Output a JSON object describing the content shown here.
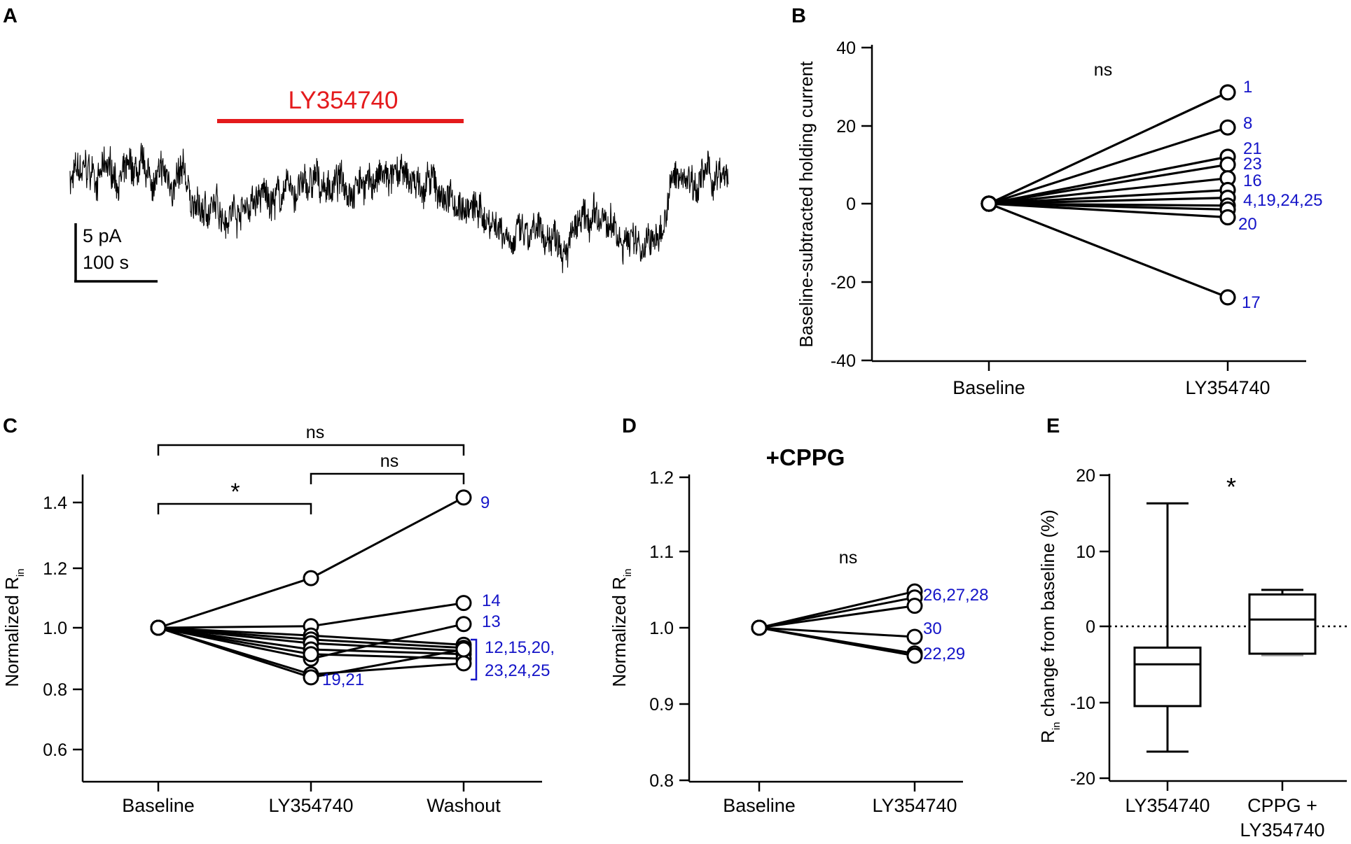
{
  "colors": {
    "axis": "#000000",
    "annotation": "#1414c8",
    "drug_bar": "#e41a1c",
    "box_whisker_grey": "#999999"
  },
  "chart_data": [
    {
      "panel": "A",
      "type": "line",
      "drug_label": "LY354740",
      "scalebar_y": "5 pA",
      "scalebar_x": "100 s",
      "trace_levels_pA": [
        {
          "t_s": 0,
          "pA": 0
        },
        {
          "t_s": 40,
          "pA": 0.4
        },
        {
          "t_s": 90,
          "pA": -0.2
        },
        {
          "t_s": 130,
          "pA": -0.5
        },
        {
          "t_s": 145,
          "pA": -3.0
        },
        {
          "t_s": 200,
          "pA": -2.2
        },
        {
          "t_s": 260,
          "pA": -1.0
        },
        {
          "t_s": 330,
          "pA": 0.0
        },
        {
          "t_s": 400,
          "pA": -0.5
        },
        {
          "t_s": 440,
          "pA": -2.2
        },
        {
          "t_s": 480,
          "pA": -3.6
        },
        {
          "t_s": 520,
          "pA": -5.6
        },
        {
          "t_s": 560,
          "pA": -4.6
        },
        {
          "t_s": 600,
          "pA": -4.2
        },
        {
          "t_s": 640,
          "pA": -5.2
        },
        {
          "t_s": 665,
          "pA": -5.8
        },
        {
          "t_s": 680,
          "pA": -0.6
        },
        {
          "t_s": 700,
          "pA": 0.5
        },
        {
          "t_s": 745,
          "pA": -0.4
        }
      ],
      "drug_window_s": [
        167,
        450
      ]
    },
    {
      "panel": "B",
      "type": "line",
      "ylabel": "Baseline-subtracted holding current",
      "ylim": [
        -40,
        40
      ],
      "yticks": [
        "40",
        "20",
        "0",
        "-20",
        "-40"
      ],
      "categories": [
        "Baseline",
        "LY354740"
      ],
      "significance": "ns",
      "series": [
        {
          "label": "1",
          "values": [
            0,
            28.5
          ]
        },
        {
          "label": "8",
          "values": [
            0,
            19.5
          ]
        },
        {
          "label": "21",
          "values": [
            0,
            12
          ]
        },
        {
          "label": "23",
          "values": [
            0,
            10
          ]
        },
        {
          "label": "16",
          "values": [
            0,
            6.5
          ]
        },
        {
          "label": "",
          "values": [
            0,
            3.5
          ]
        },
        {
          "label": "4,19,24,25",
          "values": [
            0,
            1.5
          ]
        },
        {
          "label": "",
          "values": [
            0,
            -0.5
          ]
        },
        {
          "label": "",
          "values": [
            0,
            -1.5
          ]
        },
        {
          "label": "20",
          "values": [
            0,
            -3.5
          ]
        },
        {
          "label": "17",
          "values": [
            0,
            -24
          ]
        }
      ]
    },
    {
      "panel": "C",
      "type": "line",
      "ylabel_main": "Normalized R",
      "ylabel_sub": "in",
      "ylim": [
        0.5,
        1.5
      ],
      "yticks": [
        "1.4",
        "1.2",
        "1.0",
        "0.8",
        "0.6"
      ],
      "categories": [
        "Baseline",
        "LY354740",
        "Washout"
      ],
      "comparisons": [
        {
          "from": "Baseline",
          "to": "Washout",
          "label": "ns"
        },
        {
          "from": "LY354740",
          "to": "Washout",
          "label": "ns"
        },
        {
          "from": "Baseline",
          "to": "LY354740",
          "label": "*"
        }
      ],
      "series": [
        {
          "values": [
            1.0,
            1.16,
            1.42
          ],
          "label": "9"
        },
        {
          "values": [
            1.0,
            1.005,
            1.08
          ],
          "label": "14"
        },
        {
          "values": [
            1.0,
            0.9,
            1.012
          ],
          "label": "13"
        },
        {
          "values": [
            1.0,
            0.975,
            0.945
          ]
        },
        {
          "values": [
            1.0,
            0.962,
            0.935
          ]
        },
        {
          "values": [
            1.0,
            0.95,
            0.925
          ]
        },
        {
          "values": [
            1.0,
            0.93,
            0.915
          ]
        },
        {
          "values": [
            1.0,
            0.915,
            0.9
          ]
        },
        {
          "values": [
            1.0,
            0.85,
            0.885
          ]
        },
        {
          "values": [
            1.0,
            0.84,
            0.93
          ]
        }
      ],
      "label_19_21": "19,21",
      "group_label_line1": "12,15,20,",
      "group_label_line2": "23,24,25"
    },
    {
      "panel": "D",
      "type": "line",
      "title": "+CPPG",
      "ylabel_main": "Normalized R",
      "ylabel_sub": "in",
      "ylim": [
        0.8,
        1.2
      ],
      "yticks": [
        "1.2",
        "1.1",
        "1.0",
        "0.9",
        "0.8"
      ],
      "categories": [
        "Baseline",
        "LY354740"
      ],
      "significance": "ns",
      "series": [
        {
          "values": [
            1.0,
            1.048
          ]
        },
        {
          "values": [
            1.0,
            1.04
          ]
        },
        {
          "values": [
            1.0,
            1.029
          ]
        },
        {
          "values": [
            1.0,
            0.988
          ]
        },
        {
          "values": [
            1.0,
            0.966
          ]
        },
        {
          "values": [
            1.0,
            0.963
          ]
        }
      ],
      "label_top": "26,27,28",
      "label_30": "30",
      "label_bottom": "22,29"
    },
    {
      "panel": "E",
      "type": "box",
      "ylabel_main": "R",
      "ylabel_sub": "in",
      "ylabel_rest": " change from baseline (%)",
      "ylim": [
        -20,
        20
      ],
      "yticks": [
        "20",
        "10",
        "0",
        "-10",
        "-20"
      ],
      "categories_line1": [
        "LY354740",
        "CPPG +"
      ],
      "categories_line2": [
        "",
        "LY354740"
      ],
      "significance": "*",
      "boxes": [
        {
          "min": -16.5,
          "q1": -10.5,
          "median": -5.0,
          "q3": -2.8,
          "max": 16.2
        },
        {
          "min": -3.8,
          "q1": -3.6,
          "median": 0.9,
          "q3": 4.2,
          "max": 4.8
        }
      ]
    }
  ]
}
